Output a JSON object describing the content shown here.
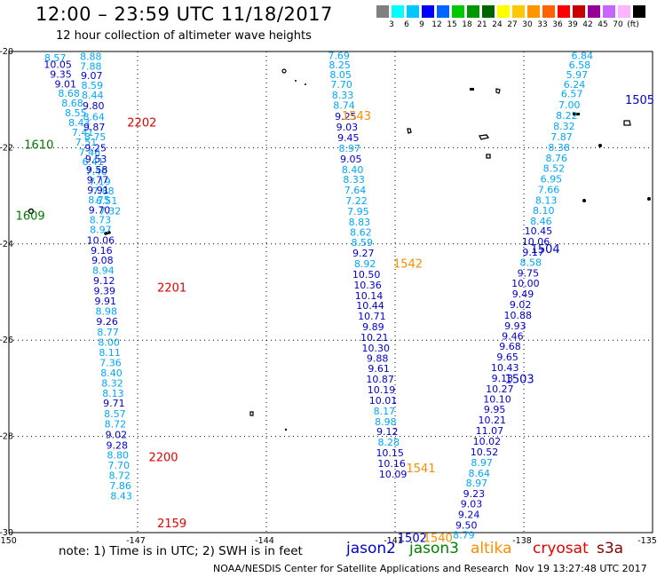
{
  "header": {
    "title": "12:00 – 23:59 UTC 11/18/2017",
    "subtitle": "12 hour collection of altimeter wave heights"
  },
  "colorbar": {
    "colors": [
      "#808080",
      "#00ffff",
      "#00c8ff",
      "#0000ff",
      "#0064ff",
      "#00c800",
      "#009600",
      "#006400",
      "#ffff00",
      "#ffc800",
      "#ff9600",
      "#ff6400",
      "#ff0000",
      "#c80000",
      "#960096",
      "#c864ff",
      "#ffb4ff",
      "#000000"
    ],
    "labels": [
      "3",
      "6",
      "9",
      "12",
      "15",
      "18",
      "21",
      "24",
      "27",
      "30",
      "33",
      "36",
      "39",
      "42",
      "45",
      "70",
      "(ft)"
    ]
  },
  "map": {
    "lon_ticks": [
      "-150",
      "-147",
      "-144",
      "-141",
      "-138",
      "-135"
    ],
    "lat_ticks": [
      "-20",
      "-22",
      "-24",
      "-26",
      "-28",
      "-30"
    ],
    "tracks": [
      {
        "id": "jason3-west",
        "points": [
          [
            -148.92,
            -20.13,
            "8.57",
            "#00a6ff"
          ],
          [
            -148.86,
            -20.27,
            "10.05",
            "#0000cc"
          ],
          [
            -148.79,
            -20.47,
            "9.35",
            "#0000cc"
          ],
          [
            -148.68,
            -20.67,
            "9.01",
            "#0000cc"
          ],
          [
            -148.6,
            -20.87,
            "8.68",
            "#00a6ff"
          ],
          [
            -148.52,
            -21.07,
            "8.68",
            "#00a6ff"
          ],
          [
            -148.44,
            -21.27,
            "8.55",
            "#00a6ff"
          ],
          [
            -148.36,
            -21.48,
            "8.43",
            "#00a6ff"
          ],
          [
            -148.28,
            -21.68,
            "7.41",
            "#00a6ff"
          ],
          [
            -148.2,
            -21.88,
            "7.51",
            "#00a6ff"
          ],
          [
            -148.12,
            -22.09,
            "7.46",
            "#00a6ff"
          ],
          [
            -148.04,
            -22.29,
            "6.41",
            "#00a6ff"
          ],
          [
            -147.96,
            -22.49,
            "7.40",
            "#00a6ff"
          ],
          [
            -147.88,
            -22.7,
            "7.19",
            "#00a6ff"
          ],
          [
            -147.8,
            -22.9,
            "7.88",
            "#00a6ff"
          ],
          [
            -147.72,
            -23.1,
            "6.51",
            "#00a6ff"
          ],
          [
            -147.64,
            -23.31,
            "7.32",
            "#00a6ff"
          ]
        ]
      },
      {
        "id": "jason2-2202",
        "points": [
          [
            -148.09,
            -20.1,
            "8.88",
            "#00a6ff"
          ],
          [
            -148.09,
            -20.3,
            "7.88",
            "#00a6ff"
          ],
          [
            -148.07,
            -20.5,
            "9.07",
            "#0000cc"
          ],
          [
            -148.06,
            -20.7,
            "8.59",
            "#00a6ff"
          ],
          [
            -148.05,
            -20.9,
            "8.44",
            "#00a6ff"
          ],
          [
            -148.03,
            -21.13,
            "9.80",
            "#0000cc"
          ],
          [
            -148.02,
            -21.36,
            "8.64",
            "#00a6ff"
          ],
          [
            -148.01,
            -21.57,
            "9.87",
            "#0000cc"
          ],
          [
            -147.99,
            -21.77,
            "8.75",
            "#00a6ff"
          ],
          [
            -147.98,
            -22.0,
            "9.25",
            "#0000cc"
          ],
          [
            -147.97,
            -22.23,
            "9.53",
            "#0000cc"
          ],
          [
            -147.95,
            -22.45,
            "9.58",
            "#0000cc"
          ],
          [
            -147.93,
            -22.67,
            "9.77",
            "#0000cc"
          ],
          [
            -147.92,
            -22.88,
            "9.91",
            "#0000cc"
          ],
          [
            -147.9,
            -23.08,
            "8.75",
            "#00a6ff"
          ],
          [
            -147.89,
            -23.29,
            "9.70",
            "#0000cc"
          ],
          [
            -147.87,
            -23.5,
            "8.73",
            "#00a6ff"
          ],
          [
            -147.86,
            -23.7,
            "8.97",
            "#00a6ff"
          ]
        ]
      },
      {
        "id": "jason2-2201",
        "points": [
          [
            -147.86,
            -23.92,
            "10.06",
            "#0000cc"
          ],
          [
            -147.84,
            -24.13,
            "9.16",
            "#0000cc"
          ],
          [
            -147.82,
            -24.34,
            "9.08",
            "#0000cc"
          ],
          [
            -147.8,
            -24.55,
            "8.94",
            "#00a6ff"
          ],
          [
            -147.78,
            -24.76,
            "9.12",
            "#0000cc"
          ],
          [
            -147.77,
            -24.97,
            "9.39",
            "#0000cc"
          ],
          [
            -147.75,
            -25.18,
            "9.91",
            "#0000cc"
          ],
          [
            -147.73,
            -25.4,
            "8.98",
            "#00a6ff"
          ],
          [
            -147.71,
            -25.61,
            "9.26",
            "#0000cc"
          ],
          [
            -147.69,
            -25.83,
            "8.77",
            "#00a6ff"
          ],
          [
            -147.67,
            -26.04,
            "8.00",
            "#00a6ff"
          ],
          [
            -147.65,
            -26.25,
            "8.11",
            "#00a6ff"
          ],
          [
            -147.63,
            -26.47,
            "7.36",
            "#00a6ff"
          ],
          [
            -147.61,
            -26.68,
            "8.40",
            "#00a6ff"
          ],
          [
            -147.59,
            -26.89,
            "8.32",
            "#00a6ff"
          ],
          [
            -147.57,
            -27.1,
            "8.13",
            "#00a6ff"
          ],
          [
            -147.55,
            -27.31,
            "9.71",
            "#0000cc"
          ],
          [
            -147.53,
            -27.53,
            "8.57",
            "#00a6ff"
          ],
          [
            -147.52,
            -27.74,
            "8.72",
            "#00a6ff"
          ],
          [
            -147.5,
            -27.96,
            "9.02",
            "#0000cc"
          ],
          [
            -147.48,
            -28.18,
            "9.28",
            "#0000cc"
          ],
          [
            -147.46,
            -28.39,
            "8.80",
            "#00a6ff"
          ],
          [
            -147.44,
            -28.6,
            "7.70",
            "#00a6ff"
          ],
          [
            -147.42,
            -28.81,
            "8.72",
            "#00a6ff"
          ],
          [
            -147.4,
            -29.02,
            "7.86",
            "#00a6ff"
          ],
          [
            -147.38,
            -29.23,
            "8.43",
            "#00a6ff"
          ]
        ]
      },
      {
        "id": "jason2-east",
        "points": [
          [
            -142.31,
            -20.08,
            "7.69",
            "#00a6ff"
          ],
          [
            -142.29,
            -20.28,
            "8.25",
            "#00a6ff"
          ],
          [
            -142.27,
            -20.48,
            "8.05",
            "#00a6ff"
          ],
          [
            -142.25,
            -20.68,
            "7.70",
            "#00a6ff"
          ],
          [
            -142.22,
            -20.9,
            "8.33",
            "#00a6ff"
          ],
          [
            -142.19,
            -21.12,
            "8.74",
            "#00a6ff"
          ],
          [
            -142.15,
            -21.35,
            "9.25",
            "#0000cc"
          ],
          [
            -142.12,
            -21.57,
            "9.03",
            "#0000cc"
          ],
          [
            -142.09,
            -21.79,
            "9.45",
            "#0000cc"
          ],
          [
            -142.06,
            -22.01,
            "8.97",
            "#00a6ff"
          ],
          [
            -142.03,
            -22.23,
            "9.05",
            "#0000cc"
          ],
          [
            -141.99,
            -22.45,
            "8.40",
            "#00a6ff"
          ],
          [
            -141.96,
            -22.66,
            "8.33",
            "#00a6ff"
          ],
          [
            -141.93,
            -22.88,
            "7.64",
            "#00a6ff"
          ],
          [
            -141.9,
            -23.1,
            "7.22",
            "#00a6ff"
          ],
          [
            -141.86,
            -23.32,
            "7.95",
            "#00a6ff"
          ],
          [
            -141.83,
            -23.54,
            "8.83",
            "#00a6ff"
          ],
          [
            -141.8,
            -23.75,
            "8.62",
            "#00a6ff"
          ],
          [
            -141.77,
            -23.97,
            "8.59",
            "#00a6ff"
          ],
          [
            -141.74,
            -24.19,
            "9.27",
            "#0000cc"
          ],
          [
            -141.7,
            -24.41,
            "8.92",
            "#00a6ff"
          ],
          [
            -141.67,
            -24.63,
            "10.50",
            "#0000cc"
          ],
          [
            -141.64,
            -24.85,
            "10.36",
            "#0000cc"
          ],
          [
            -141.61,
            -25.07,
            "10.14",
            "#0000cc"
          ],
          [
            -141.58,
            -25.28,
            "10.44",
            "#0000cc"
          ],
          [
            -141.54,
            -25.5,
            "10.71",
            "#0000cc"
          ],
          [
            -141.51,
            -25.72,
            "9.89",
            "#0000cc"
          ],
          [
            -141.48,
            -25.94,
            "10.21",
            "#0000cc"
          ],
          [
            -141.45,
            -26.16,
            "10.30",
            "#0000cc"
          ],
          [
            -141.41,
            -26.37,
            "9.88",
            "#0000cc"
          ],
          [
            -141.38,
            -26.59,
            "9.61",
            "#0000cc"
          ],
          [
            -141.35,
            -26.81,
            "10.87",
            "#0000cc"
          ],
          [
            -141.32,
            -27.03,
            "10.19",
            "#0000cc"
          ],
          [
            -141.28,
            -27.25,
            "10.01",
            "#0000cc"
          ],
          [
            -141.25,
            -27.47,
            "8.17",
            "#00a6ff"
          ],
          [
            -141.22,
            -27.69,
            "8.98",
            "#00a6ff"
          ],
          [
            -141.18,
            -27.9,
            "9.12",
            "#0000cc"
          ],
          [
            -141.15,
            -28.12,
            "8.28",
            "#00a6ff"
          ],
          [
            -141.12,
            -28.34,
            "10.15",
            "#0000cc"
          ],
          [
            -141.08,
            -28.56,
            "10.16",
            "#0000cc"
          ],
          [
            -141.05,
            -28.78,
            "10.09",
            "#0000cc"
          ]
        ]
      },
      {
        "id": "jason3-1504",
        "points": [
          [
            -136.64,
            -20.08,
            "6.84",
            "#00a6ff"
          ],
          [
            -136.7,
            -20.28,
            "6.58",
            "#00a6ff"
          ],
          [
            -136.76,
            -20.48,
            "5.97",
            "#00a6ff"
          ],
          [
            -136.82,
            -20.68,
            "6.24",
            "#00a6ff"
          ],
          [
            -136.88,
            -20.88,
            "6.57",
            "#00a6ff"
          ],
          [
            -136.94,
            -21.11,
            "7.00",
            "#00a6ff"
          ],
          [
            -137.0,
            -21.33,
            "8.22",
            "#00a6ff"
          ],
          [
            -137.06,
            -21.55,
            "8.32",
            "#00a6ff"
          ],
          [
            -137.12,
            -21.77,
            "7.87",
            "#00a6ff"
          ],
          [
            -137.18,
            -21.99,
            "8.38",
            "#00a6ff"
          ],
          [
            -137.24,
            -22.21,
            "8.76",
            "#00a6ff"
          ],
          [
            -137.3,
            -22.43,
            "8.52",
            "#00a6ff"
          ],
          [
            -137.36,
            -22.65,
            "6.95",
            "#00a6ff"
          ],
          [
            -137.42,
            -22.87,
            "7.66",
            "#00a6ff"
          ],
          [
            -137.48,
            -23.09,
            "8.13",
            "#00a6ff"
          ],
          [
            -137.54,
            -23.3,
            "8.10",
            "#00a6ff"
          ],
          [
            -137.6,
            -23.52,
            "8.46",
            "#00a6ff"
          ],
          [
            -137.66,
            -23.73,
            "10.45",
            "#0000cc"
          ],
          [
            -137.72,
            -23.95,
            "10.06",
            "#0000cc"
          ],
          [
            -137.78,
            -24.17,
            "9.17",
            "#0000cc"
          ],
          [
            -137.84,
            -24.38,
            "8.58",
            "#00a6ff"
          ],
          [
            -137.9,
            -24.6,
            "9.75",
            "#0000cc"
          ],
          [
            -137.96,
            -24.82,
            "10.00",
            "#0000cc"
          ],
          [
            -138.02,
            -25.04,
            "9.49",
            "#0000cc"
          ],
          [
            -138.08,
            -25.26,
            "9.02",
            "#0000cc"
          ],
          [
            -138.14,
            -25.48,
            "10.88",
            "#0000cc"
          ],
          [
            -138.2,
            -25.7,
            "9.93",
            "#0000cc"
          ],
          [
            -138.26,
            -25.91,
            "9.46",
            "#0000cc"
          ],
          [
            -138.32,
            -26.13,
            "9.68",
            "#0000cc"
          ],
          [
            -138.38,
            -26.35,
            "9.65",
            "#0000cc"
          ],
          [
            -138.44,
            -26.57,
            "10.43",
            "#0000cc"
          ],
          [
            -138.5,
            -26.79,
            "9.13",
            "#0000cc"
          ],
          [
            -138.56,
            -27.01,
            "10.27",
            "#0000cc"
          ],
          [
            -138.62,
            -27.22,
            "10.10",
            "#0000cc"
          ],
          [
            -138.68,
            -27.44,
            "9.95",
            "#0000cc"
          ],
          [
            -138.74,
            -27.66,
            "10.21",
            "#0000cc"
          ],
          [
            -138.8,
            -27.88,
            "11.07",
            "#0000cc"
          ],
          [
            -138.86,
            -28.1,
            "10.02",
            "#0000cc"
          ],
          [
            -138.92,
            -28.32,
            "10.52",
            "#0000cc"
          ],
          [
            -138.98,
            -28.54,
            "8.97",
            "#00a6ff"
          ],
          [
            -139.04,
            -28.76,
            "8.64",
            "#00a6ff"
          ],
          [
            -139.1,
            -28.97,
            "8.97",
            "#00a6ff"
          ],
          [
            -139.16,
            -29.19,
            "9.23",
            "#0000cc"
          ],
          [
            -139.22,
            -29.4,
            "9.03",
            "#0000cc"
          ],
          [
            -139.28,
            -29.62,
            "9.24",
            "#0000cc"
          ],
          [
            -139.34,
            -29.84,
            "9.50",
            "#0000cc"
          ],
          [
            -139.4,
            -30.05,
            "8.79",
            "#00a6ff"
          ]
        ]
      }
    ],
    "time_labels": [
      {
        "lon": -146.9,
        "lat": -21.47,
        "text": "2202",
        "color": "#e00000"
      },
      {
        "lon": -149.3,
        "lat": -21.93,
        "text": "1610",
        "color": "#007a00"
      },
      {
        "lon": -149.5,
        "lat": -23.4,
        "text": "1609",
        "color": "#007a00"
      },
      {
        "lon": -146.2,
        "lat": -24.9,
        "text": "2201",
        "color": "#e00000"
      },
      {
        "lon": -146.4,
        "lat": -28.42,
        "text": "2200",
        "color": "#e00000"
      },
      {
        "lon": -146.2,
        "lat": -29.8,
        "text": "2159",
        "color": "#e00000"
      },
      {
        "lon": -141.9,
        "lat": -21.33,
        "text": "1543",
        "color": "#ff8c00"
      },
      {
        "lon": -140.7,
        "lat": -24.4,
        "text": "1542",
        "color": "#ff8c00"
      },
      {
        "lon": -135.3,
        "lat": -21.0,
        "text": "1505",
        "color": "#0000cc"
      },
      {
        "lon": -137.5,
        "lat": -24.1,
        "text": "1504",
        "color": "#0000cc"
      },
      {
        "lon": -138.1,
        "lat": -26.8,
        "text": "1503",
        "color": "#0000cc"
      },
      {
        "lon": -140.4,
        "lat": -28.65,
        "text": "1541",
        "color": "#ff8c00"
      },
      {
        "lon": -140.6,
        "lat": -30.1,
        "text": "1502",
        "color": "#0000cc"
      },
      {
        "lon": -140.0,
        "lat": -30.1,
        "text": "1540",
        "color": "#ff8c00"
      }
    ]
  },
  "legend": {
    "note": "note: 1) Time is in UTC; 2) SWH is in feet",
    "jason2": "jason2",
    "jason3": "jason3",
    "altika": "altika",
    "cryosat": "cryosat",
    "s3a": "s3a"
  },
  "footer": {
    "credit": "NOAA/NESDIS Center for Satellite Applications and Research",
    "stamp": "Nov 19 13:27:48 UTC 2017"
  }
}
